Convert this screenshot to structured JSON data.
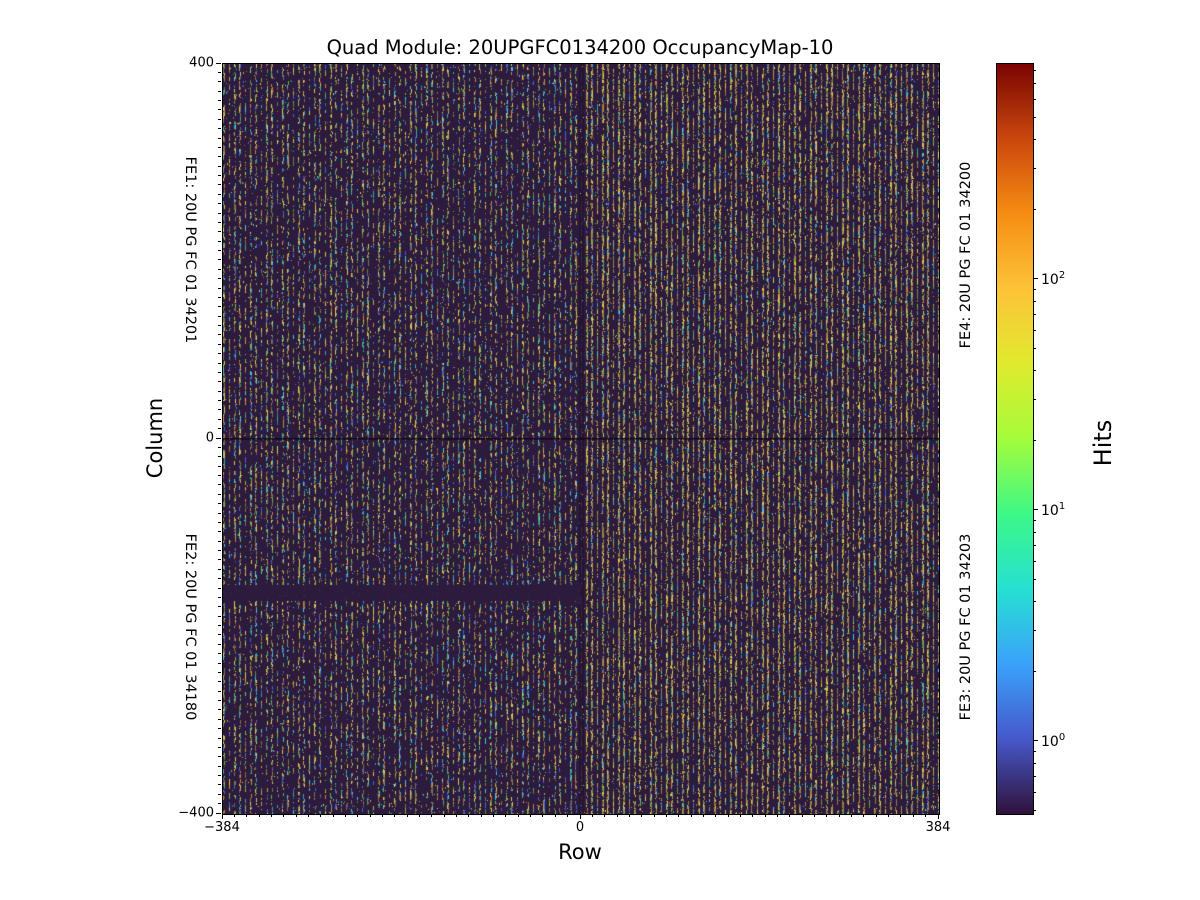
{
  "title": "Quad Module: 20UPGFC0134200 OccupancyMap-10",
  "axes": {
    "xlabel": "Row",
    "ylabel": "Column",
    "x_tick_labels": [
      "−384",
      "0",
      "384"
    ],
    "y_tick_labels": [
      "400",
      "0",
      "−400"
    ]
  },
  "fe_labels": {
    "fe1": "FE1: 20U PG FC 01 34201",
    "fe2": "FE2: 20U PG FC 01 34180",
    "fe3": "FE3: 20U PG FC 01 34203",
    "fe4": "FE4: 20U PG FC 01 34200"
  },
  "colorbar": {
    "label": "Hits",
    "tick_labels": [
      {
        "base": "10",
        "exp": "2"
      },
      {
        "base": "10",
        "exp": "1"
      },
      {
        "base": "10",
        "exp": "0"
      }
    ]
  },
  "colors": {
    "fe_label_blue": "#1a1ae0",
    "heatmap_background": "#2d1b3e",
    "spine_black": "#000000",
    "colorbar_gradient_top_to_bottom": [
      "#7a0403",
      "#ca470c",
      "#f68d13",
      "#fdc338",
      "#e0ea2e",
      "#a4fc3b",
      "#3df886",
      "#26e0d1",
      "#3aa2fb",
      "#4658ca",
      "#30123b"
    ]
  },
  "chart_data": {
    "type": "heatmap",
    "title": "Quad Module: 20UPGFC0134200 OccupancyMap-10",
    "xlabel": "Row",
    "ylabel": "Column",
    "x_range": [
      -384,
      384
    ],
    "y_range": [
      -400,
      400
    ],
    "x_ticks": [
      -384,
      0,
      384
    ],
    "y_ticks": [
      400,
      0,
      -400
    ],
    "colormap": "turbo",
    "color_scale": "log",
    "colorbar_label": "Hits",
    "colorbar_tick_values": [
      100,
      10,
      1
    ],
    "colorbar_value_range_approx": [
      0.5,
      860
    ],
    "legend_position": "right-colorbar",
    "grid": false,
    "description": "Pixel-detector occupancy map of a quad module, four front-end chips in quadrants; dense vertical striped hit pattern of mostly ~1-400 hits per pixel on a near-zero background; right half (FE3/FE4) denser and more olive-yellow than left half (FE1/FE2).",
    "features": {
      "chip_boundary_row": 0,
      "chip_boundary_column": 0,
      "dead_band": {
        "rows": [
          -384,
          0
        ],
        "columns": [
          -157,
          -173
        ],
        "note": "solid low-occupancy horizontal band in FE2 region"
      }
    },
    "frontends": [
      {
        "position": "top-left",
        "label": "FE1: 20U PG FC 01 34201"
      },
      {
        "position": "bottom-left",
        "label": "FE2: 20U PG FC 01 34180"
      },
      {
        "position": "bottom-right",
        "label": "FE3: 20U PG FC 01 34203"
      },
      {
        "position": "top-right",
        "label": "FE4: 20U PG FC 01 34200"
      }
    ]
  }
}
